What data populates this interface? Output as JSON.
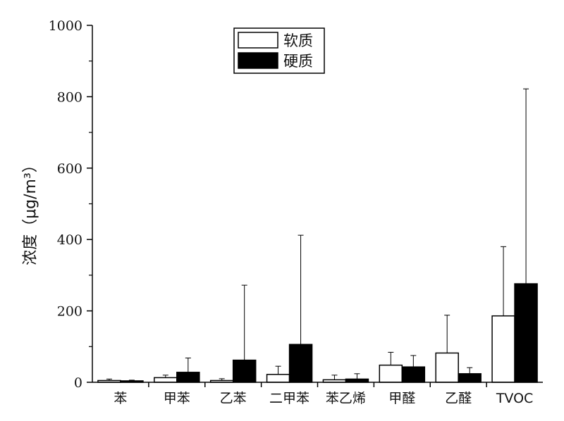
{
  "chart_data": {
    "type": "bar",
    "title": "",
    "xlabel": "",
    "ylabel": "浓度（μg/m³）",
    "ylim": [
      0,
      1000
    ],
    "yticks": [
      "0",
      "200",
      "400",
      "600",
      "800",
      "1000"
    ],
    "categories": [
      "苯",
      "甲苯",
      "乙苯",
      "二甲苯",
      "苯乙烯",
      "甲醛",
      "乙醛",
      "TVOC"
    ],
    "legend_position": "top-center",
    "grid": false,
    "series": [
      {
        "name": "软质",
        "fill": "#ffffff",
        "values": [
          5,
          13,
          5,
          22,
          7,
          48,
          82,
          186
        ],
        "error_upper": [
          9,
          20,
          10,
          45,
          20,
          84,
          188,
          380
        ]
      },
      {
        "name": "硬质",
        "fill": "#000000",
        "values": [
          4,
          28,
          62,
          106,
          9,
          43,
          24,
          276
        ],
        "error_upper": [
          6,
          68,
          272,
          412,
          24,
          75,
          41,
          822
        ]
      }
    ]
  }
}
